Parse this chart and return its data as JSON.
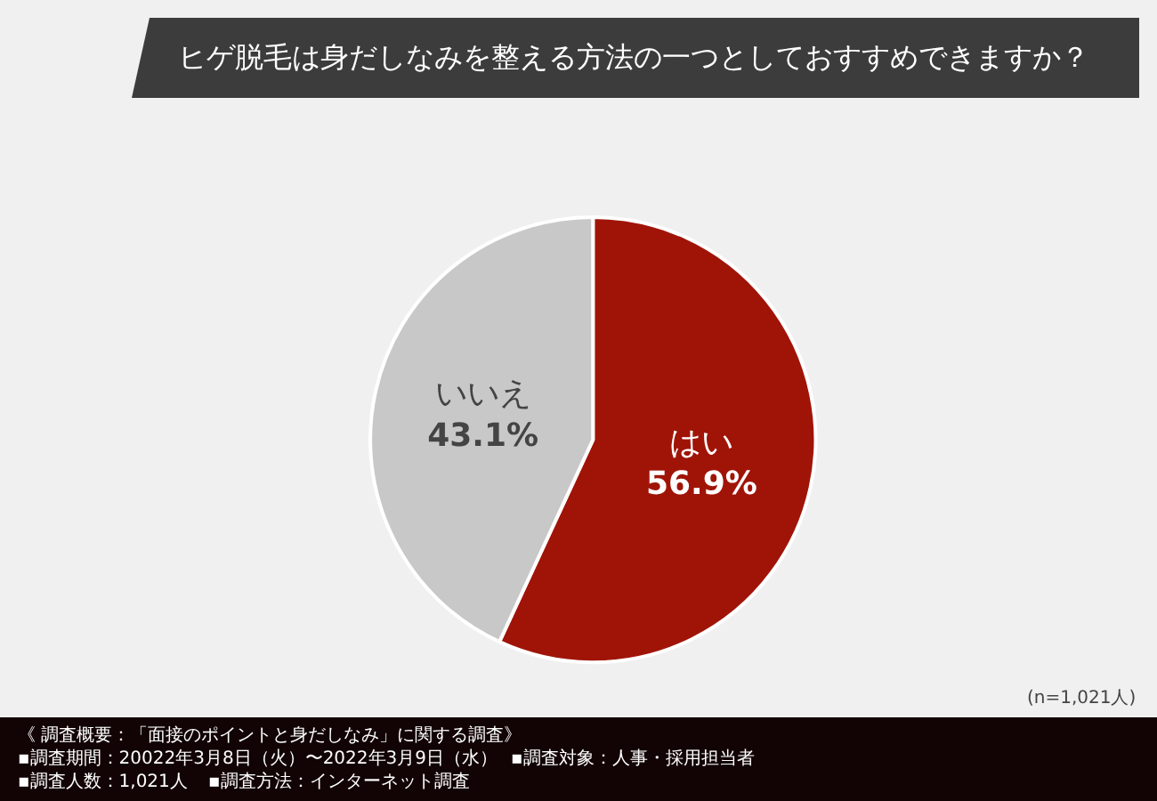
{
  "chart_data": {
    "type": "pie",
    "title": "ヒゲ脱毛は身だしなみを整える方法の一つとしておすすめできますか？",
    "categories": [
      "はい",
      "いいえ"
    ],
    "values": [
      56.9,
      43.1
    ],
    "value_labels": [
      "56.9%",
      "43.1%"
    ],
    "colors": [
      "#a01408",
      "#c8c8c8"
    ],
    "legend": false,
    "annotations": [
      "(n=1,021人)",
      "《 調査概要：「面接のポイントと身だしなみ」に関する調査》",
      "▪調査期間：20022年3月8日（火）〜2022年3月9日（水）",
      "▪調査対象：人事・採用担当者",
      "▪調査人数：1,021人",
      "▪調査方法：インターネット調査"
    ]
  }
}
